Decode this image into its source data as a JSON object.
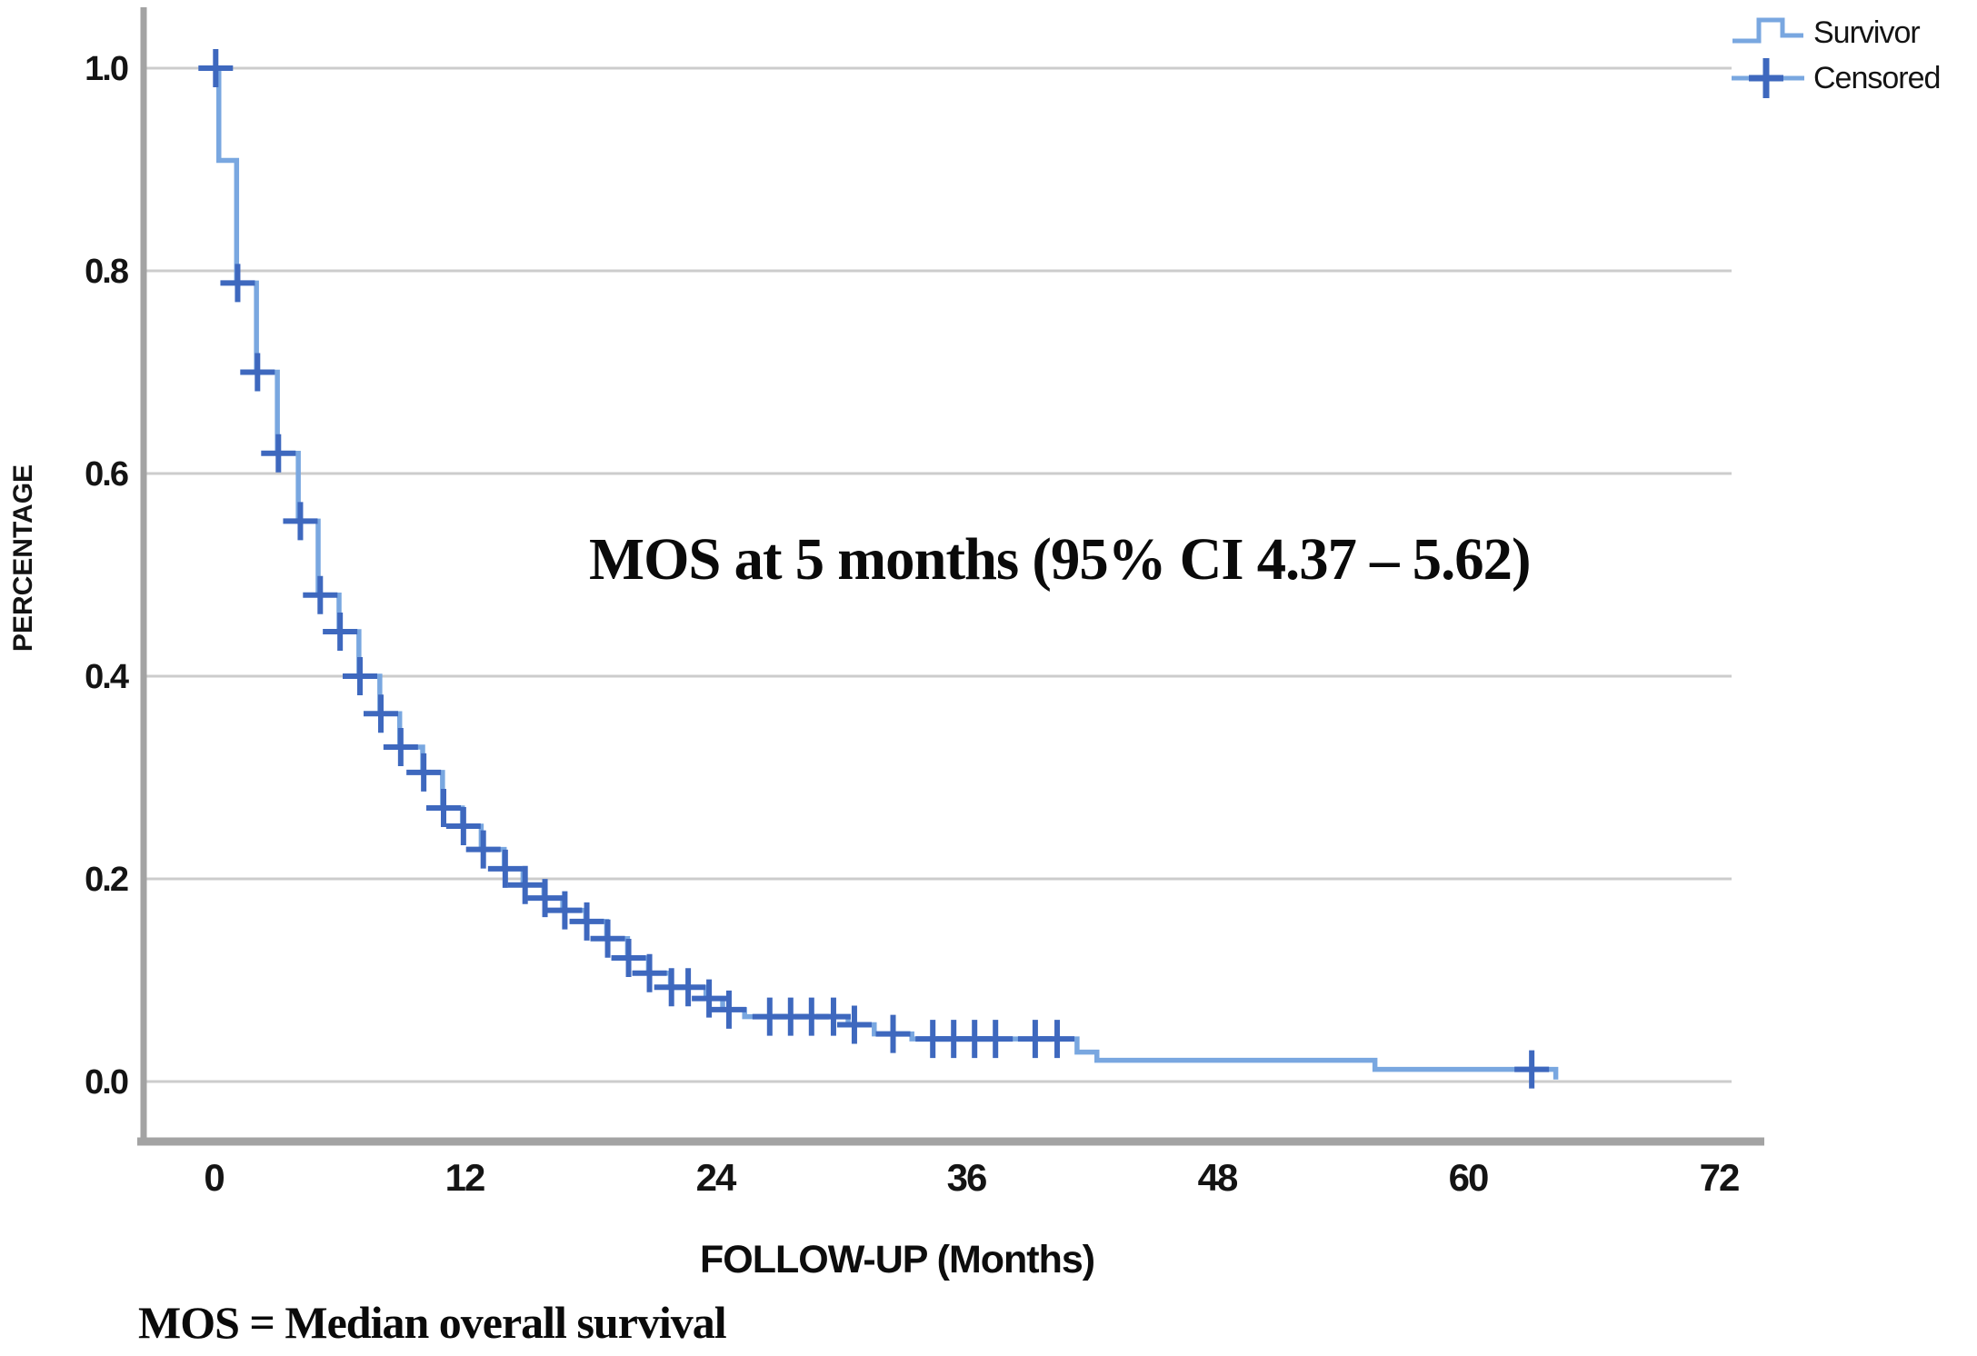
{
  "figure": {
    "annotation": "MOS at 5 months (95% CI 4.37 – 5.62)",
    "footnote": "MOS = Median overall survival",
    "legend": {
      "position": "top-right",
      "items": [
        {
          "label": "Survivor",
          "marker": "step-line"
        },
        {
          "label": "Censored",
          "marker": "plus-marker"
        }
      ]
    }
  },
  "chart_data": {
    "type": "line",
    "subtype": "kaplan-meier-survival-step",
    "title": "",
    "xlabel": "FOLLOW-UP (Months)",
    "ylabel": "PERCENTAGE",
    "xlim": [
      0,
      72
    ],
    "ylim": [
      0.0,
      1.0
    ],
    "x_ticks": [
      0,
      12,
      24,
      36,
      48,
      60,
      72
    ],
    "x_tick_labels": [
      "0",
      "12",
      "24",
      "36",
      "48",
      "60",
      "72"
    ],
    "y_ticks": [
      1.0,
      0.8,
      0.6,
      0.4,
      0.2,
      0.0
    ],
    "y_tick_labels": [
      "1.0",
      "0.8",
      "0.6",
      "0.4",
      "0.2",
      "0.0"
    ],
    "grid": "horizontal-only",
    "legend_position": "top-right",
    "colors": {
      "line": "#79A7E0",
      "censor": "#3E68BE",
      "grid": "#CCCCCC",
      "axis": "#A3A3A3",
      "text": "#141414"
    },
    "series": [
      {
        "name": "Survivor",
        "steps": [
          [
            0,
            1.0
          ],
          [
            0.25,
            0.909
          ],
          [
            1.1,
            0.788
          ],
          [
            2.05,
            0.7
          ],
          [
            3.05,
            0.62
          ],
          [
            4.05,
            0.553
          ],
          [
            5.0,
            0.48
          ],
          [
            6.0,
            0.444
          ],
          [
            6.95,
            0.4
          ],
          [
            7.95,
            0.363
          ],
          [
            8.9,
            0.33
          ],
          [
            10.0,
            0.305
          ],
          [
            10.95,
            0.27
          ],
          [
            11.9,
            0.252
          ],
          [
            12.8,
            0.229
          ],
          [
            13.9,
            0.21
          ],
          [
            14.8,
            0.194
          ],
          [
            15.8,
            0.181
          ],
          [
            16.7,
            0.169
          ],
          [
            17.8,
            0.158
          ],
          [
            18.8,
            0.141
          ],
          [
            19.8,
            0.122
          ],
          [
            20.8,
            0.107
          ],
          [
            21.85,
            0.093
          ],
          [
            23.55,
            0.082
          ],
          [
            24.35,
            0.071
          ],
          [
            25.4,
            0.064
          ],
          [
            30.35,
            0.056
          ],
          [
            31.6,
            0.047
          ],
          [
            33.4,
            0.042
          ],
          [
            41.3,
            0.029
          ],
          [
            42.25,
            0.021
          ],
          [
            55.55,
            0.012
          ],
          [
            64.2,
            0.002
          ]
        ]
      }
    ],
    "censored_points": [
      [
        0.1,
        1.0
      ],
      [
        1.15,
        0.788
      ],
      [
        2.1,
        0.7
      ],
      [
        3.1,
        0.62
      ],
      [
        4.15,
        0.553
      ],
      [
        5.1,
        0.48
      ],
      [
        6.05,
        0.444
      ],
      [
        7.0,
        0.4
      ],
      [
        8.0,
        0.363
      ],
      [
        8.95,
        0.33
      ],
      [
        10.05,
        0.305
      ],
      [
        11.0,
        0.27
      ],
      [
        11.95,
        0.252
      ],
      [
        12.9,
        0.229
      ],
      [
        13.95,
        0.21
      ],
      [
        14.9,
        0.194
      ],
      [
        15.85,
        0.181
      ],
      [
        16.8,
        0.169
      ],
      [
        17.85,
        0.158
      ],
      [
        18.85,
        0.141
      ],
      [
        19.85,
        0.122
      ],
      [
        20.85,
        0.107
      ],
      [
        21.9,
        0.093
      ],
      [
        22.7,
        0.093
      ],
      [
        23.7,
        0.082
      ],
      [
        24.65,
        0.071
      ],
      [
        26.6,
        0.064
      ],
      [
        27.6,
        0.064
      ],
      [
        28.6,
        0.064
      ],
      [
        29.65,
        0.064
      ],
      [
        30.65,
        0.056
      ],
      [
        32.5,
        0.047
      ],
      [
        34.4,
        0.042
      ],
      [
        35.4,
        0.042
      ],
      [
        36.4,
        0.042
      ],
      [
        37.4,
        0.042
      ],
      [
        39.3,
        0.042
      ],
      [
        40.35,
        0.042
      ],
      [
        63.05,
        0.012
      ]
    ]
  }
}
